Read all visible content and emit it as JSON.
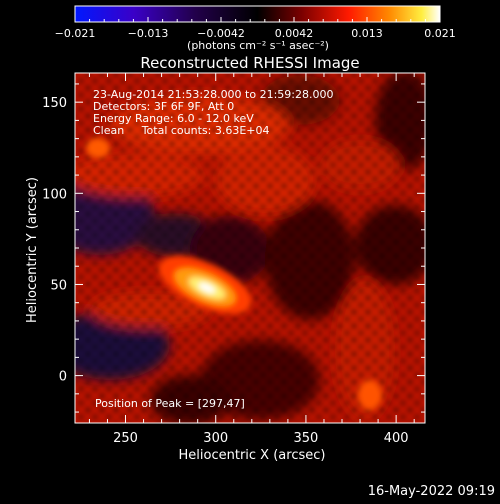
{
  "colorbar": {
    "tick_labels": [
      "−0.021",
      "−0.013",
      "−0.0042",
      "0.0042",
      "0.013",
      "0.021"
    ],
    "range": [
      -0.021,
      0.021
    ],
    "unit_label": "(photons cm⁻² s⁻¹ asec⁻²)"
  },
  "chart_data": {
    "type": "heatmap",
    "title": "Reconstructed RHESSI Image",
    "xlabel": "Heliocentric X (arcsec)",
    "ylabel": "Heliocentric Y (arcsec)",
    "xlim": [
      222,
      416
    ],
    "ylim": [
      -26,
      166
    ],
    "xticks": [
      250,
      300,
      350,
      400
    ],
    "yticks": [
      0,
      50,
      100,
      150
    ],
    "grid": false,
    "info_lines": [
      "23-Aug-2014 21:53:28.000 to 21:59:28.000",
      "Detectors: 3F 6F 9F, Att 0",
      "Energy Range: 6.0 - 12.0 keV",
      "Clean     Total counts: 3.63E+04"
    ],
    "peak_label": "Position of Peak = [297,47]",
    "peak": {
      "x": 297,
      "y": 47
    },
    "colormap": "hot (blue-black-red-yellow-white)"
  },
  "footer": {
    "timestamp": "16-May-2022 09:19"
  }
}
